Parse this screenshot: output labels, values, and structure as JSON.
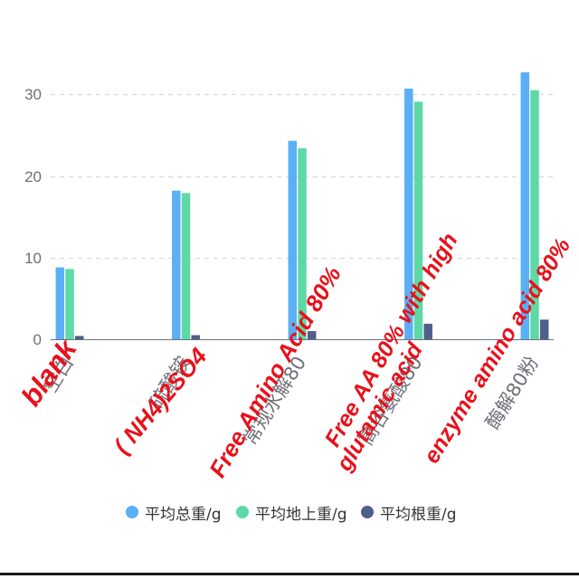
{
  "chart_data": {
    "type": "bar",
    "categories": [
      "空白",
      "硫酸铵",
      "常规水解80",
      "高谷氨酸80",
      "酶解80粉"
    ],
    "series": [
      {
        "name": "平均总重/g",
        "color": "#5aaff5",
        "values": [
          8.8,
          18.2,
          24.3,
          30.7,
          32.7
        ]
      },
      {
        "name": "平均地上重/g",
        "color": "#5ed9a6",
        "values": [
          8.6,
          17.9,
          23.4,
          29.1,
          30.5
        ]
      },
      {
        "name": "平均根重/g",
        "color": "#4f5e8b",
        "values": [
          0.4,
          0.5,
          1.0,
          1.9,
          2.4
        ]
      }
    ],
    "y_ticks": [
      "0",
      "10",
      "20",
      "30"
    ],
    "ylim": [
      0,
      40
    ],
    "grid": true,
    "legend_position": "bottom",
    "annotations": [
      "blank",
      "( NH4)2SO4",
      "Free Amino Acid 80%",
      "Free AA 80% with high",
      "glutamic acid",
      "enzyme amino acid 80%"
    ],
    "annotation_color": "#e8111b"
  }
}
